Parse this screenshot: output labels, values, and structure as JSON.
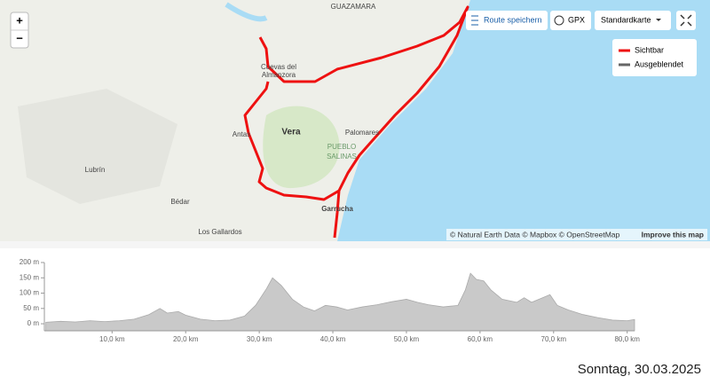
{
  "map": {
    "labels": [
      "GUAZAMARA",
      "Cuevas del",
      "Almanzora",
      "Vera",
      "Antas",
      "Palomares",
      "PUEBLO",
      "SALINAS",
      "Lubrín",
      "Bédar",
      "Garrucha",
      "Los Gallardos"
    ],
    "controls": {
      "zoom_in": "+",
      "zoom_out": "−",
      "save": "Route speichern",
      "gpx": "GPX",
      "style": "Standardkarte"
    },
    "legend": [
      "Sichtbar",
      "Ausgeblendet"
    ],
    "attribution": "© Natural Earth Data © Mapbox © OpenStreetMap",
    "improve": "Improve this map"
  },
  "chart_data": {
    "type": "area",
    "color": "#c9c9c9",
    "x": [
      1,
      3,
      5,
      7,
      9,
      11,
      13,
      15,
      16.5,
      17.5,
      19,
      20,
      22,
      24,
      26,
      28,
      29.5,
      31,
      31.8,
      33,
      34.5,
      36,
      37.5,
      39,
      40.5,
      42,
      44,
      46,
      48,
      50,
      51.5,
      53,
      55,
      57,
      58,
      58.7,
      59.5,
      60.5,
      61.5,
      63,
      65,
      66,
      67,
      68.5,
      69.5,
      70.5,
      72,
      74,
      76,
      78,
      80,
      81
    ],
    "values": [
      5,
      8,
      6,
      10,
      7,
      10,
      15,
      30,
      50,
      35,
      40,
      28,
      15,
      10,
      12,
      25,
      60,
      115,
      150,
      125,
      80,
      55,
      42,
      60,
      55,
      45,
      55,
      62,
      72,
      80,
      70,
      62,
      55,
      60,
      110,
      165,
      145,
      140,
      110,
      80,
      70,
      85,
      70,
      85,
      95,
      60,
      45,
      30,
      20,
      12,
      10,
      14
    ],
    "xlim": [
      0.8,
      81.0
    ],
    "ylim": [
      -23,
      200
    ],
    "xticks": [
      {
        "value": 10,
        "label": "10,0 km"
      },
      {
        "value": 20,
        "label": "20,0 km"
      },
      {
        "value": 30,
        "label": "30,0 km"
      },
      {
        "value": 40,
        "label": "40,0 km"
      },
      {
        "value": 50,
        "label": "50,0 km"
      },
      {
        "value": 60,
        "label": "60,0 km"
      },
      {
        "value": 70,
        "label": "70,0 km"
      },
      {
        "value": 80,
        "label": "80,0 km"
      }
    ],
    "yticks": [
      {
        "value": 0,
        "label": "0 m"
      },
      {
        "value": 50,
        "label": "50 m"
      },
      {
        "value": 100,
        "label": "100 m"
      },
      {
        "value": 150,
        "label": "150 m"
      },
      {
        "value": 200,
        "label": "200 m"
      }
    ]
  },
  "footer": {
    "date": "Sonntag, 30.03.2025"
  }
}
